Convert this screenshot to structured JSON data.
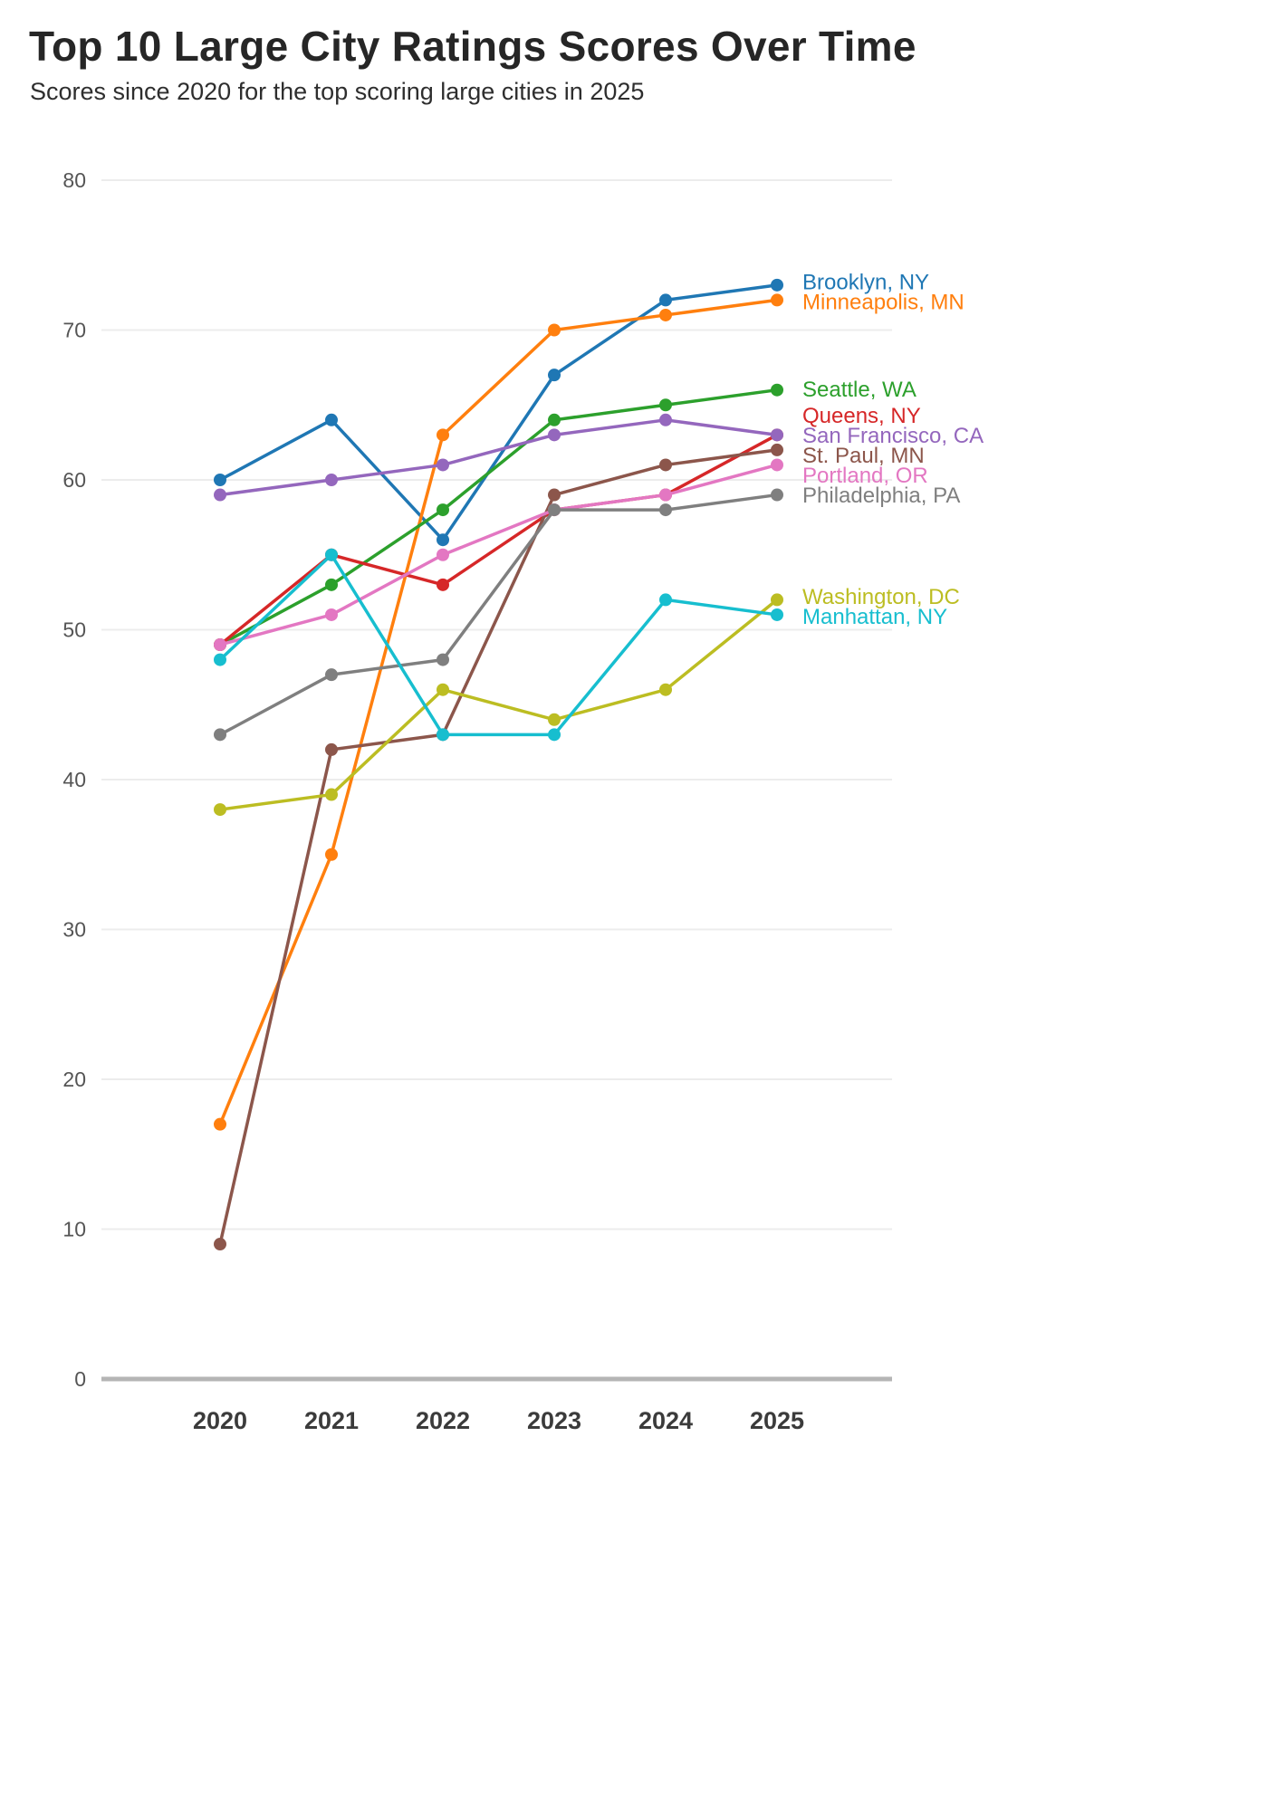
{
  "header": {
    "title": "Top 10 Large City Ratings Scores Over Time",
    "subtitle": "Scores since 2020 for the top scoring large cities in 2025"
  },
  "chart_data": {
    "type": "line",
    "title": "Top 10 Large City Ratings Scores Over Time",
    "subtitle": "Scores since 2020 for the top scoring large cities in 2025",
    "x": [
      2020,
      2021,
      2022,
      2023,
      2024,
      2025
    ],
    "ylim": [
      0,
      80
    ],
    "yticks": [
      0,
      10,
      20,
      30,
      40,
      50,
      60,
      70,
      80
    ],
    "grid": true,
    "legend_position": "right-edge-labels",
    "marker": "circle",
    "series": [
      {
        "name": "Brooklyn, NY",
        "color": "#1f77b4",
        "values": [
          60,
          64,
          56,
          67,
          72,
          73
        ]
      },
      {
        "name": "Minneapolis, MN",
        "color": "#ff7f0e",
        "values": [
          17,
          35,
          63,
          70,
          71,
          72
        ]
      },
      {
        "name": "Seattle, WA",
        "color": "#2ca02c",
        "values": [
          49,
          53,
          58,
          64,
          65,
          66
        ]
      },
      {
        "name": "Queens, NY",
        "color": "#d62728",
        "values": [
          49,
          55,
          53,
          58,
          59,
          63
        ]
      },
      {
        "name": "San Francisco, CA",
        "color": "#9467bd",
        "values": [
          59,
          60,
          61,
          63,
          64,
          63
        ]
      },
      {
        "name": "St. Paul, MN",
        "color": "#8c564b",
        "values": [
          9,
          42,
          43,
          59,
          61,
          62
        ]
      },
      {
        "name": "Portland, OR",
        "color": "#e377c2",
        "values": [
          49,
          51,
          55,
          58,
          59,
          61
        ]
      },
      {
        "name": "Philadelphia, PA",
        "color": "#7f7f7f",
        "values": [
          43,
          47,
          48,
          58,
          58,
          59
        ]
      },
      {
        "name": "Washington, DC",
        "color": "#bcbd22",
        "values": [
          38,
          39,
          46,
          44,
          46,
          52
        ]
      },
      {
        "name": "Manhattan, NY",
        "color": "#17becf",
        "values": [
          48,
          55,
          43,
          43,
          52,
          51
        ]
      }
    ],
    "style": {
      "grid_color": "#ececec",
      "axis_color": "#b5b5b5",
      "ytick_color": "#555555",
      "xtick_color": "#3b3b3b",
      "background": "#ffffff"
    }
  }
}
